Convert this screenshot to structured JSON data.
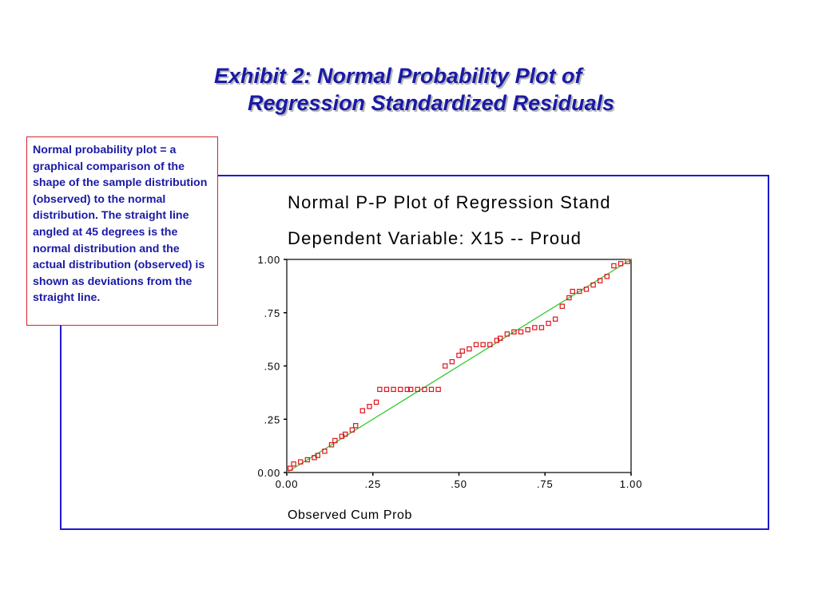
{
  "slide": {
    "title_line1": "Exhibit 2:  Normal Probability Plot of",
    "title_line2": "Regression Standardized Residuals"
  },
  "callout": {
    "text": "Normal probability plot  = a graphical comparison of the shape of the sample distribution (observed) to the normal distribution.  The straight line angled at 45 degrees is the normal distribution and the actual distribution (observed) is shown as deviations from the straight line."
  },
  "colors": {
    "title": "#1a1aa6",
    "frame_border": "#1b1bd0",
    "callout_border": "#d8242c",
    "reference_line": "#33cc33",
    "marker": "#e0141e"
  },
  "chart_data": {
    "type": "scatter",
    "title": "Normal P-P Plot of Regression Stand",
    "subtitle": "Dependent Variable: X15 -- Proud",
    "xlabel": "Observed Cum Prob",
    "ylabel": "",
    "xlim": [
      0,
      1
    ],
    "ylim": [
      0,
      1
    ],
    "x_ticks": [
      0,
      0.25,
      0.5,
      0.75,
      1
    ],
    "x_tick_labels": [
      "0.00",
      ".25",
      ".50",
      ".75",
      "1.00"
    ],
    "y_ticks": [
      0,
      0.25,
      0.5,
      0.75,
      1
    ],
    "y_tick_labels": [
      "0.00",
      ".25",
      ".50",
      ".75",
      "1.00"
    ],
    "grid": false,
    "reference_line": {
      "from": [
        0,
        0
      ],
      "to": [
        1,
        1
      ]
    },
    "series": [
      {
        "marker": "hollow-square",
        "x": [
          0.01,
          0.02,
          0.04,
          0.06,
          0.08,
          0.09,
          0.11,
          0.13,
          0.14,
          0.16,
          0.17,
          0.19,
          0.2,
          0.22,
          0.24,
          0.26,
          0.27,
          0.29,
          0.31,
          0.33,
          0.35,
          0.36,
          0.38,
          0.4,
          0.42,
          0.44,
          0.46,
          0.48,
          0.5,
          0.51,
          0.53,
          0.55,
          0.57,
          0.59,
          0.61,
          0.62,
          0.64,
          0.66,
          0.68,
          0.7,
          0.72,
          0.74,
          0.76,
          0.78,
          0.8,
          0.82,
          0.83,
          0.85,
          0.87,
          0.89,
          0.91,
          0.93,
          0.95,
          0.97,
          0.99
        ],
        "y": [
          0.02,
          0.04,
          0.05,
          0.06,
          0.07,
          0.08,
          0.1,
          0.13,
          0.15,
          0.17,
          0.18,
          0.2,
          0.22,
          0.29,
          0.31,
          0.33,
          0.39,
          0.39,
          0.39,
          0.39,
          0.39,
          0.39,
          0.39,
          0.39,
          0.39,
          0.39,
          0.5,
          0.52,
          0.55,
          0.57,
          0.58,
          0.6,
          0.6,
          0.6,
          0.62,
          0.63,
          0.65,
          0.66,
          0.66,
          0.67,
          0.68,
          0.68,
          0.7,
          0.72,
          0.78,
          0.82,
          0.85,
          0.85,
          0.86,
          0.88,
          0.9,
          0.92,
          0.97,
          0.98,
          0.99
        ]
      }
    ]
  }
}
